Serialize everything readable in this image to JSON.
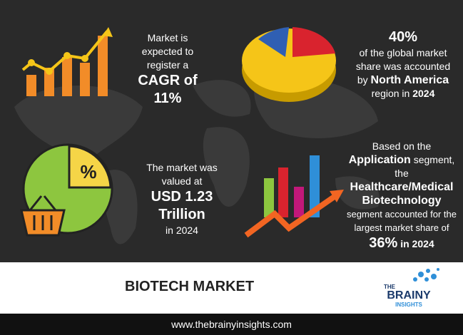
{
  "cagr": {
    "text": "Market is expected to register a",
    "value": "CAGR of 11%"
  },
  "share": {
    "value": "40%",
    "text": "of the global market share was accounted by",
    "region": "North America",
    "suffix": "region in",
    "year": "2024"
  },
  "size": {
    "text": "The market was valued at",
    "value": "USD 1.23 Trillion",
    "suffix": "in 2024"
  },
  "segment": {
    "prefix": "Based on the",
    "segment": "Application",
    "middle": "segment, the",
    "leader": "Healthcare/Medical Biotechnology",
    "text": "segment accounted for the largest market share of",
    "value": "36%",
    "suffix": "in 2024"
  },
  "pie_icon_label": "%",
  "footer": {
    "title": "BIOTECH MARKET",
    "url": "www.thebrainyinsights.com"
  },
  "logo": {
    "line1": "THE",
    "line2": "BRAINY",
    "line3": "INSIGHTS"
  }
}
